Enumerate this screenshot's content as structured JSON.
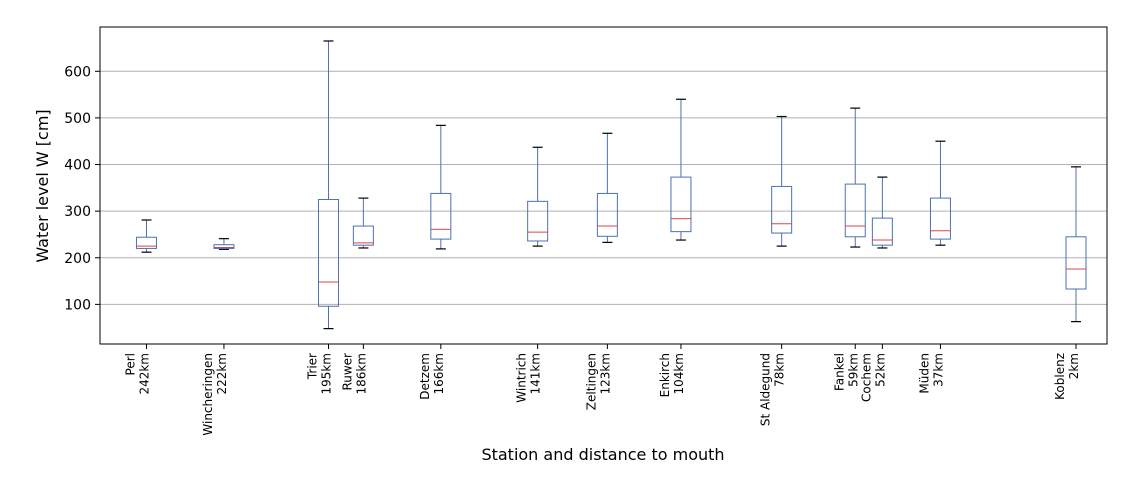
{
  "chart_data": {
    "type": "box",
    "xlabel": "Station and distance to mouth",
    "ylabel": "Water level W [cm]",
    "ylim": [
      15,
      695
    ],
    "xlim": [
      254,
      -6
    ],
    "y_ticks": [
      100,
      200,
      300,
      400,
      500,
      600
    ],
    "grid": "horizontal",
    "colors": {
      "box": "#4c72b0",
      "median": "#dd4444",
      "cap": "#000000",
      "grid": "#b0b0b0"
    },
    "stations": [
      {
        "name": "Perl",
        "km_label": "242km",
        "km": 242,
        "whisker_low": 212,
        "q1": 220,
        "median": 225,
        "q3": 244,
        "whisker_high": 281
      },
      {
        "name": "Wincheringen",
        "km_label": "222km",
        "km": 222,
        "whisker_low": 218,
        "q1": 220,
        "median": 222,
        "q3": 228,
        "whisker_high": 241
      },
      {
        "name": "Trier",
        "km_label": "195km",
        "km": 195,
        "whisker_low": 48,
        "q1": 96,
        "median": 148,
        "q3": 325,
        "whisker_high": 665
      },
      {
        "name": "Ruwer",
        "km_label": "186km",
        "km": 186,
        "whisker_low": 221,
        "q1": 227,
        "median": 232,
        "q3": 268,
        "whisker_high": 328
      },
      {
        "name": "Detzem",
        "km_label": "166km",
        "km": 166,
        "whisker_low": 219,
        "q1": 240,
        "median": 261,
        "q3": 338,
        "whisker_high": 484
      },
      {
        "name": "Wintrich",
        "km_label": "141km",
        "km": 141,
        "whisker_low": 225,
        "q1": 236,
        "median": 255,
        "q3": 321,
        "whisker_high": 437
      },
      {
        "name": "Zeltingen",
        "km_label": "123km",
        "km": 123,
        "whisker_low": 233,
        "q1": 246,
        "median": 268,
        "q3": 338,
        "whisker_high": 467
      },
      {
        "name": "Enkirch",
        "km_label": "104km",
        "km": 104,
        "whisker_low": 238,
        "q1": 256,
        "median": 284,
        "q3": 373,
        "whisker_high": 540
      },
      {
        "name": "St Aldegund",
        "km_label": "78km",
        "km": 78,
        "whisker_low": 225,
        "q1": 253,
        "median": 273,
        "q3": 353,
        "whisker_high": 503
      },
      {
        "name": "Fankel",
        "km_label": "59km",
        "km": 59,
        "whisker_low": 223,
        "q1": 245,
        "median": 268,
        "q3": 358,
        "whisker_high": 521
      },
      {
        "name": "Cochem",
        "km_label": "52km",
        "km": 52,
        "whisker_low": 221,
        "q1": 227,
        "median": 238,
        "q3": 285,
        "whisker_high": 373
      },
      {
        "name": "Müden",
        "km_label": "37km",
        "km": 37,
        "whisker_low": 227,
        "q1": 240,
        "median": 258,
        "q3": 328,
        "whisker_high": 450
      },
      {
        "name": "Koblenz",
        "km_label": "2km",
        "km": 2,
        "whisker_low": 63,
        "q1": 133,
        "median": 176,
        "q3": 245,
        "whisker_high": 395
      }
    ]
  }
}
